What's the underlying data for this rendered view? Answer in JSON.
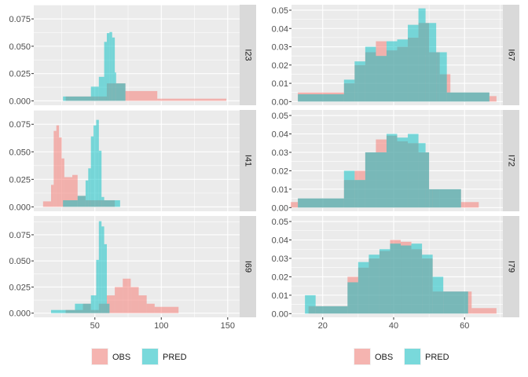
{
  "colors": {
    "obs": "#F8766D",
    "pred": "#00BFC4",
    "panel_bg": "#EBEBEB",
    "strip_bg": "#D9D9D9",
    "grid": "#FFFFFF"
  },
  "legend_labels": [
    "OBS",
    "PRED"
  ],
  "chart_data": [
    {
      "type": "histogram",
      "facet_grid": true,
      "legend": "bottom",
      "grid": true,
      "xlim": [
        4,
        159
      ],
      "x_ticks": [
        50,
        100,
        150
      ],
      "panels": [
        {
          "strip": "I23",
          "ylim": [
            -0.004,
            0.088
          ],
          "y_ticks": [
            "0.000",
            "0.025",
            "0.050",
            "0.075"
          ],
          "series": [
            {
              "name": "OBS",
              "bins": [
                [
                  28,
                  35,
                  0.004
                ],
                [
                  35,
                  41,
                  0.004
                ],
                [
                  41,
                  47,
                  0.004
                ],
                [
                  47,
                  53,
                  0.004
                ],
                [
                  53,
                  59,
                  0.004
                ],
                [
                  59,
                  65,
                  0.016
                ],
                [
                  65,
                  73,
                  0.016
                ],
                [
                  73,
                  97,
                  0.009
                ],
                [
                  97,
                  149,
                  0.002
                ]
              ]
            },
            {
              "name": "PRED",
              "bins": [
                [
                  26,
                  31,
                  0.004
                ],
                [
                  31,
                  47,
                  0.004
                ],
                [
                  47,
                  53,
                  0.013
                ],
                [
                  53,
                  57,
                  0.022
                ],
                [
                  57,
                  59,
                  0.054
                ],
                [
                  59,
                  61,
                  0.062
                ],
                [
                  61,
                  63,
                  0.063
                ],
                [
                  63,
                  65,
                  0.058
                ],
                [
                  65,
                  66,
                  0.026
                ],
                [
                  66,
                  73,
                  0.016
                ]
              ]
            }
          ]
        },
        {
          "strip": "I41",
          "ylim": [
            -0.004,
            0.088
          ],
          "y_ticks": [
            "0.000",
            "0.025",
            "0.050",
            "0.075"
          ],
          "series": [
            {
              "name": "OBS",
              "bins": [
                [
                  11,
                  17,
                  0.005
                ],
                [
                  17,
                  19,
                  0.02
                ],
                [
                  19,
                  21,
                  0.069
                ],
                [
                  21,
                  23,
                  0.074
                ],
                [
                  23,
                  25,
                  0.063
                ],
                [
                  25,
                  27,
                  0.044
                ],
                [
                  27,
                  33,
                  0.027
                ],
                [
                  33,
                  37,
                  0.029
                ],
                [
                  37,
                  43,
                  0.01
                ],
                [
                  43,
                  65,
                  0.006
                ]
              ]
            },
            {
              "name": "PRED",
              "bins": [
                [
                  26,
                  37,
                  0.006
                ],
                [
                  37,
                  43,
                  0.01
                ],
                [
                  43,
                  45,
                  0.024
                ],
                [
                  45,
                  47,
                  0.035
                ],
                [
                  47,
                  49,
                  0.064
                ],
                [
                  49,
                  51,
                  0.074
                ],
                [
                  51,
                  53,
                  0.079
                ],
                [
                  53,
                  55,
                  0.051
                ],
                [
                  55,
                  57,
                  0.009
                ],
                [
                  57,
                  69,
                  0.006
                ]
              ]
            }
          ]
        },
        {
          "strip": "I69",
          "ylim": [
            -0.004,
            0.093
          ],
          "y_ticks": [
            "0.000",
            "0.025",
            "0.050",
            "0.075"
          ],
          "series": [
            {
              "name": "OBS",
              "bins": [
                [
                  28,
                  35,
                  0.003
                ],
                [
                  35,
                  41,
                  0.003
                ],
                [
                  41,
                  47,
                  0.009
                ],
                [
                  47,
                  53,
                  0.003
                ],
                [
                  53,
                  59,
                  0.009
                ],
                [
                  59,
                  65,
                  0.017
                ],
                [
                  65,
                  71,
                  0.025
                ],
                [
                  71,
                  77,
                  0.033
                ],
                [
                  77,
                  83,
                  0.025
                ],
                [
                  83,
                  89,
                  0.017
                ],
                [
                  89,
                  95,
                  0.009
                ],
                [
                  95,
                  113,
                  0.006
                ]
              ]
            },
            {
              "name": "PRED",
              "bins": [
                [
                  17,
                  35,
                  0.003
                ],
                [
                  35,
                  47,
                  0.009
                ],
                [
                  47,
                  51,
                  0.017
                ],
                [
                  51,
                  53,
                  0.051
                ],
                [
                  53,
                  55,
                  0.088
                ],
                [
                  55,
                  57,
                  0.083
                ],
                [
                  57,
                  59,
                  0.066
                ],
                [
                  59,
                  61,
                  0.009
                ]
              ]
            }
          ]
        }
      ]
    },
    {
      "type": "histogram",
      "facet_grid": true,
      "legend": "bottom",
      "grid": true,
      "xlim": [
        11.2,
        70.8
      ],
      "x_ticks": [
        20,
        40,
        60
      ],
      "panels": [
        {
          "strip": "I67",
          "ylim": [
            -0.002,
            0.053
          ],
          "y_ticks": [
            "0.00",
            "0.01",
            "0.02",
            "0.03",
            "0.04",
            "0.05"
          ],
          "series": [
            {
              "name": "OBS",
              "bins": [
                [
                  13,
                  26,
                  0.005
                ],
                [
                  26,
                  29,
                  0.01
                ],
                [
                  29,
                  32,
                  0.02
                ],
                [
                  32,
                  35,
                  0.027
                ],
                [
                  35,
                  38,
                  0.033
                ],
                [
                  38,
                  41,
                  0.028
                ],
                [
                  41,
                  44,
                  0.03
                ],
                [
                  44,
                  47,
                  0.035
                ],
                [
                  47,
                  50,
                  0.043
                ],
                [
                  50,
                  53,
                  0.027
                ],
                [
                  53,
                  56,
                  0.015
                ],
                [
                  56,
                  67,
                  0.005
                ],
                [
                  67,
                  69,
                  0.003
                ]
              ]
            },
            {
              "name": "PRED",
              "bins": [
                [
                  13,
                  26,
                  0.004
                ],
                [
                  26,
                  29,
                  0.012
                ],
                [
                  29,
                  32,
                  0.022
                ],
                [
                  32,
                  35,
                  0.03
                ],
                [
                  35,
                  38,
                  0.025
                ],
                [
                  38,
                  41,
                  0.033
                ],
                [
                  41,
                  44,
                  0.034
                ],
                [
                  44,
                  47,
                  0.042
                ],
                [
                  47,
                  49,
                  0.051
                ],
                [
                  49,
                  52,
                  0.043
                ],
                [
                  52,
                  55,
                  0.027
                ],
                [
                  55,
                  67,
                  0.005
                ]
              ]
            }
          ]
        },
        {
          "strip": "I72",
          "ylim": [
            -0.002,
            0.053
          ],
          "y_ticks": [
            "0.00",
            "0.01",
            "0.02",
            "0.03",
            "0.04",
            "0.05"
          ],
          "series": [
            {
              "name": "OBS",
              "bins": [
                [
                  11,
                  13,
                  0.003
                ],
                [
                  13,
                  26,
                  0.005
                ],
                [
                  26,
                  29,
                  0.015
                ],
                [
                  29,
                  32,
                  0.02
                ],
                [
                  32,
                  35,
                  0.03
                ],
                [
                  35,
                  38,
                  0.037
                ],
                [
                  38,
                  41,
                  0.039
                ],
                [
                  41,
                  44,
                  0.036
                ],
                [
                  44,
                  47,
                  0.035
                ],
                [
                  47,
                  50,
                  0.03
                ],
                [
                  50,
                  53,
                  0.01
                ],
                [
                  53,
                  59,
                  0.01
                ],
                [
                  59,
                  64,
                  0.003
                ]
              ]
            },
            {
              "name": "PRED",
              "bins": [
                [
                  13,
                  26,
                  0.005
                ],
                [
                  26,
                  29,
                  0.02
                ],
                [
                  29,
                  32,
                  0.015
                ],
                [
                  32,
                  35,
                  0.03
                ],
                [
                  35,
                  38,
                  0.03
                ],
                [
                  38,
                  41,
                  0.04
                ],
                [
                  41,
                  44,
                  0.038
                ],
                [
                  44,
                  47,
                  0.04
                ],
                [
                  47,
                  49,
                  0.035
                ],
                [
                  49,
                  50,
                  0.03
                ],
                [
                  50,
                  51,
                  0.01
                ],
                [
                  51,
                  59,
                  0.01
                ]
              ]
            }
          ]
        },
        {
          "strip": "I79",
          "ylim": [
            -0.002,
            0.053
          ],
          "y_ticks": [
            "0.00",
            "0.01",
            "0.02",
            "0.03",
            "0.04",
            "0.05"
          ],
          "series": [
            {
              "name": "OBS",
              "bins": [
                [
                  16,
                  18,
                  0.004
                ],
                [
                  18,
                  27,
                  0.004
                ],
                [
                  27,
                  30,
                  0.02
                ],
                [
                  30,
                  33,
                  0.025
                ],
                [
                  33,
                  36,
                  0.03
                ],
                [
                  36,
                  39,
                  0.034
                ],
                [
                  39,
                  42,
                  0.04
                ],
                [
                  42,
                  45,
                  0.039
                ],
                [
                  45,
                  48,
                  0.035
                ],
                [
                  48,
                  51,
                  0.03
                ],
                [
                  51,
                  54,
                  0.012
                ],
                [
                  54,
                  62,
                  0.012
                ],
                [
                  62,
                  69,
                  0.003
                ]
              ]
            },
            {
              "name": "PRED",
              "bins": [
                [
                  15,
                  18,
                  0.01
                ],
                [
                  18,
                  27,
                  0.004
                ],
                [
                  27,
                  30,
                  0.017
                ],
                [
                  30,
                  33,
                  0.028
                ],
                [
                  33,
                  36,
                  0.032
                ],
                [
                  36,
                  39,
                  0.035
                ],
                [
                  39,
                  42,
                  0.038
                ],
                [
                  42,
                  45,
                  0.037
                ],
                [
                  45,
                  48,
                  0.038
                ],
                [
                  48,
                  51,
                  0.032
                ],
                [
                  51,
                  54,
                  0.02
                ],
                [
                  54,
                  61,
                  0.012
                ]
              ]
            }
          ]
        }
      ]
    }
  ]
}
